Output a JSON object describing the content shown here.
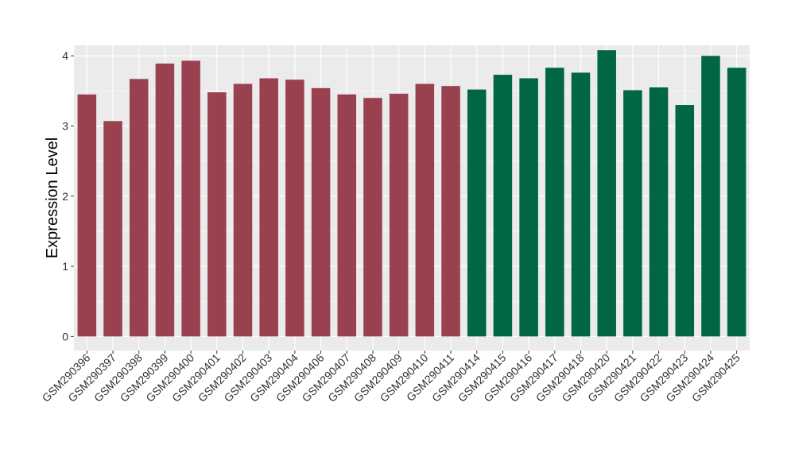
{
  "chart_data": {
    "type": "bar",
    "title": "",
    "xlabel": "",
    "ylabel": "Expression Level",
    "ylim": [
      -0.2,
      4.15
    ],
    "yticks": [
      0,
      1,
      2,
      3,
      4
    ],
    "grid": true,
    "colors": {
      "group1": "#9a4150",
      "group2": "#006644",
      "panel": "#ebebeb",
      "grid": "#ffffff"
    },
    "categories": [
      "GSM290396",
      "GSM290397",
      "GSM290398",
      "GSM290399",
      "GSM290400",
      "GSM290401",
      "GSM290402",
      "GSM290403",
      "GSM290404",
      "GSM290406",
      "GSM290407",
      "GSM290408",
      "GSM290409",
      "GSM290410",
      "GSM290411",
      "GSM290414",
      "GSM290415",
      "GSM290416",
      "GSM290417",
      "GSM290418",
      "GSM290420",
      "GSM290421",
      "GSM290422",
      "GSM290423",
      "GSM290424",
      "GSM290425"
    ],
    "values": [
      3.45,
      3.07,
      3.67,
      3.89,
      3.93,
      3.48,
      3.6,
      3.68,
      3.66,
      3.54,
      3.45,
      3.4,
      3.46,
      3.6,
      3.57,
      3.52,
      3.73,
      3.68,
      3.83,
      3.76,
      4.08,
      3.51,
      3.55,
      3.3,
      4.0,
      3.83
    ],
    "groups": [
      1,
      1,
      1,
      1,
      1,
      1,
      1,
      1,
      1,
      1,
      1,
      1,
      1,
      1,
      1,
      2,
      2,
      2,
      2,
      2,
      2,
      2,
      2,
      2,
      2,
      2
    ]
  }
}
